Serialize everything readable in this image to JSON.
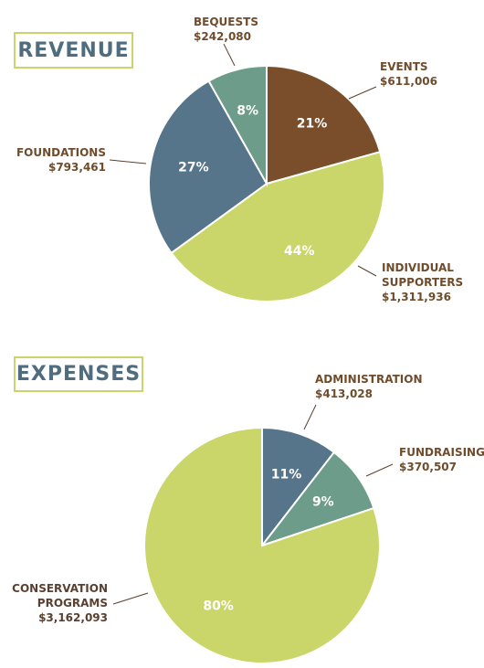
{
  "revenue": {
    "heading": "REVENUE",
    "labels": {
      "bequests": {
        "title": "BEQUESTS",
        "amount": "$242,080"
      },
      "events": {
        "title": "EVENTS",
        "amount": "$611,006"
      },
      "foundations": {
        "title": "FOUNDATIONS",
        "amount": "$793,461"
      },
      "individual": {
        "title_line1": "INDIVIDUAL",
        "title_line2": "SUPPORTERS",
        "amount": "$1,311,936"
      }
    }
  },
  "expenses": {
    "heading": "EXPENSES",
    "labels": {
      "administration": {
        "title": "ADMINISTRATION",
        "amount": "$413,028"
      },
      "fundraising": {
        "title": "FUNDRAISING",
        "amount": "$370,507"
      },
      "conservation": {
        "title_line1": "CONSERVATION",
        "title_line2": "PROGRAMS",
        "amount": "$3,162,093"
      }
    }
  },
  "chart_data": [
    {
      "type": "pie",
      "title": "REVENUE",
      "slices": [
        {
          "name": "EVENTS",
          "value": 611006,
          "percent_label": "21%",
          "color": "#7a4e2a"
        },
        {
          "name": "INDIVIDUAL SUPPORTERS",
          "value": 1311936,
          "percent_label": "44%",
          "color": "#cbd66a"
        },
        {
          "name": "FOUNDATIONS",
          "value": 793461,
          "percent_label": "27%",
          "color": "#56748a"
        },
        {
          "name": "BEQUESTS",
          "value": 242080,
          "percent_label": "8%",
          "color": "#6d9c8a"
        }
      ]
    },
    {
      "type": "pie",
      "title": "EXPENSES",
      "slices": [
        {
          "name": "ADMINISTRATION",
          "value": 413028,
          "percent_label": "11%",
          "color": "#56748a"
        },
        {
          "name": "FUNDRAISING",
          "value": 370507,
          "percent_label": "9%",
          "color": "#6d9c8a"
        },
        {
          "name": "CONSERVATION PROGRAMS",
          "value": 3162093,
          "percent_label": "80%",
          "color": "#cbd66a"
        }
      ]
    }
  ]
}
